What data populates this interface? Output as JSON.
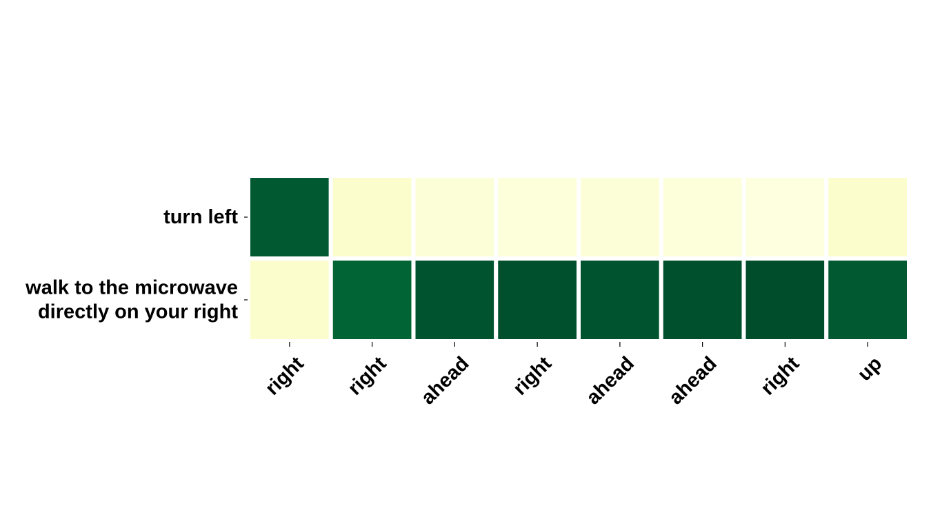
{
  "chart_data": {
    "type": "heatmap",
    "colormap": "YlGn",
    "value_range": [
      0,
      1
    ],
    "rows": [
      {
        "label_lines": [
          "turn left"
        ]
      },
      {
        "label_lines": [
          "walk to the microwave",
          "directly on your right"
        ]
      }
    ],
    "columns": [
      "right",
      "right",
      "ahead",
      "right",
      "ahead",
      "ahead",
      "right",
      "up"
    ],
    "values": [
      [
        0.93,
        0.07,
        0.04,
        0.03,
        0.04,
        0.03,
        0.02,
        0.07
      ],
      [
        0.07,
        0.89,
        0.95,
        0.96,
        0.95,
        0.96,
        0.97,
        0.93
      ]
    ],
    "grid": false,
    "legend": "none"
  }
}
